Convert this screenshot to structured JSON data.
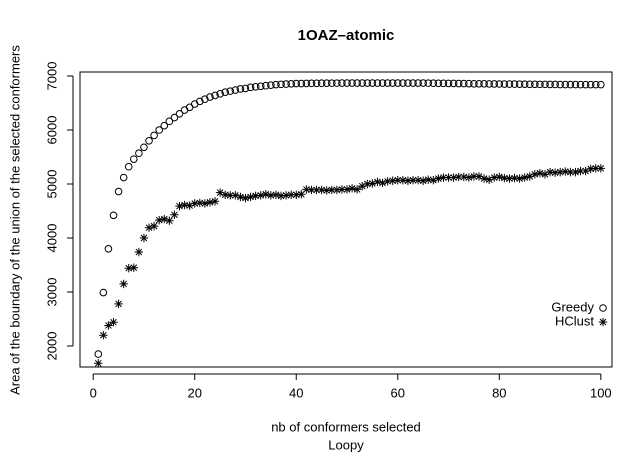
{
  "chart_data": {
    "type": "scatter",
    "title": "1OAZ–atomic",
    "x_label": "nb of conformers selected",
    "subtitle": "Loopy",
    "y_label": "Area of the boundary of the union of the selected conformers",
    "x": [
      1,
      2,
      3,
      4,
      5,
      6,
      7,
      8,
      9,
      10,
      11,
      12,
      13,
      14,
      15,
      16,
      17,
      18,
      19,
      20,
      21,
      22,
      23,
      24,
      25,
      26,
      27,
      28,
      29,
      30,
      31,
      32,
      33,
      34,
      35,
      36,
      37,
      38,
      39,
      40,
      41,
      42,
      43,
      44,
      45,
      46,
      47,
      48,
      49,
      50,
      51,
      52,
      53,
      54,
      55,
      56,
      57,
      58,
      59,
      60,
      61,
      62,
      63,
      64,
      65,
      66,
      67,
      68,
      69,
      70,
      71,
      72,
      73,
      74,
      75,
      76,
      77,
      78,
      79,
      80,
      81,
      82,
      83,
      84,
      85,
      86,
      87,
      88,
      89,
      90,
      91,
      92,
      93,
      94,
      95,
      96,
      97,
      98,
      99,
      100
    ],
    "series": [
      {
        "name": "Greedy",
        "color": "#000000",
        "marker": "circle",
        "values": [
          1850,
          2990,
          3800,
          4420,
          4860,
          5120,
          5320,
          5460,
          5570,
          5680,
          5800,
          5900,
          6000,
          6080,
          6160,
          6230,
          6300,
          6370,
          6420,
          6480,
          6530,
          6570,
          6610,
          6640,
          6670,
          6700,
          6720,
          6740,
          6760,
          6770,
          6790,
          6800,
          6810,
          6820,
          6830,
          6840,
          6845,
          6850,
          6855,
          6860,
          6860,
          6862,
          6864,
          6865,
          6866,
          6867,
          6868,
          6868,
          6869,
          6870,
          6870,
          6870,
          6870,
          6870,
          6870,
          6870,
          6870,
          6870,
          6870,
          6870,
          6870,
          6870,
          6870,
          6870,
          6870,
          6868,
          6866,
          6865,
          6864,
          6863,
          6862,
          6860,
          6860,
          6858,
          6856,
          6855,
          6855,
          6854,
          6853,
          6852,
          6851,
          6850,
          6850,
          6849,
          6848,
          6847,
          6846,
          6845,
          6845,
          6844,
          6843,
          6842,
          6842,
          6841,
          6841,
          6840,
          6840,
          6840,
          6840,
          6840
        ]
      },
      {
        "name": "HClust",
        "color": "#000000",
        "marker": "asterisk",
        "values": [
          1680,
          2200,
          2380,
          2440,
          2780,
          3150,
          3440,
          3450,
          3740,
          4000,
          4190,
          4220,
          4330,
          4350,
          4320,
          4430,
          4590,
          4610,
          4600,
          4640,
          4650,
          4640,
          4660,
          4680,
          4840,
          4800,
          4790,
          4790,
          4760,
          4740,
          4760,
          4780,
          4790,
          4810,
          4790,
          4800,
          4780,
          4790,
          4800,
          4800,
          4810,
          4900,
          4890,
          4890,
          4890,
          4880,
          4890,
          4890,
          4900,
          4900,
          4920,
          4900,
          4960,
          5000,
          5010,
          5040,
          5020,
          5050,
          5060,
          5070,
          5070,
          5060,
          5070,
          5070,
          5060,
          5080,
          5070,
          5100,
          5120,
          5120,
          5120,
          5130,
          5130,
          5120,
          5140,
          5140,
          5100,
          5080,
          5120,
          5130,
          5110,
          5100,
          5110,
          5100,
          5120,
          5140,
          5180,
          5200,
          5180,
          5220,
          5210,
          5220,
          5230,
          5220,
          5220,
          5240,
          5240,
          5280,
          5290,
          5290
        ]
      }
    ],
    "xlim": [
      -2.6,
      102.2
    ],
    "ylim": [
      1611,
      7074
    ],
    "xticks": [
      0,
      20,
      40,
      60,
      80,
      100
    ],
    "yticks": [
      2000,
      3000,
      4000,
      5000,
      6000,
      7000
    ],
    "legend": "bottomright"
  }
}
